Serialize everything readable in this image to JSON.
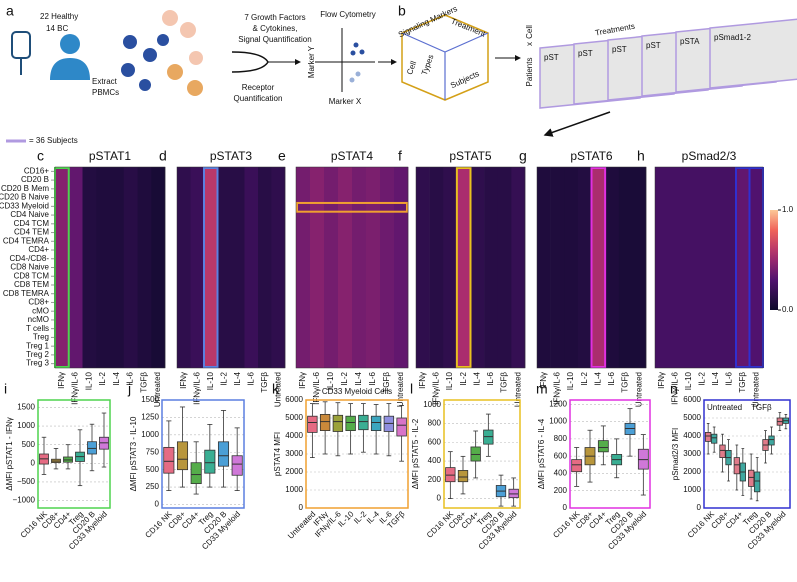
{
  "schematic": {
    "panel_a": "a",
    "cohort": [
      "22 Healthy",
      "14 BC"
    ],
    "extract": [
      "Extract",
      "PBMCs"
    ],
    "factors": [
      "7 Growth Factors",
      "& Cytokines,",
      "Signal Quantification"
    ],
    "receptor": [
      "Receptor",
      "Quantification"
    ],
    "flow": "Flow Cytometry",
    "marker_y": "Marker Y",
    "marker_x": "Marker X",
    "panel_b": "b",
    "cube": [
      "Signaling Markers",
      "Treatment",
      "Cell",
      "Types",
      "Subjects"
    ],
    "tensor": {
      "patients": "Patients",
      "x": "x",
      "cell": "Cell",
      "treatments": "Treatments",
      "slices": [
        "pST",
        "pST",
        "pST",
        "pST",
        "pSTA",
        "pSmad1-2"
      ]
    },
    "legend": "= 36 Subjects"
  },
  "chart_data": [
    {
      "type": "heatmap",
      "panel": "c",
      "title": "pSTAT1",
      "columns": [
        "IFNγ",
        "IFNγ/IL-6",
        "IL-10",
        "IL-2",
        "IL-4",
        "IL-6",
        "TGFβ",
        "Untreated"
      ],
      "values": [
        0.45,
        0.35,
        0.1,
        0.08,
        0.08,
        0.12,
        0.08,
        0.05
      ],
      "highlight_columns": [
        0
      ],
      "highlight_color": "#4fd34f",
      "rows": [
        "CD16+",
        "CD20 B",
        "CD20 B Mem",
        "CD20 B Naive",
        "CD33 Myeloid",
        "CD4 Naive",
        "CD4 TCM",
        "CD4 TEM",
        "CD4 TEMRA",
        "CD4+",
        "CD4-/CD8-",
        "CD8 Naive",
        "CD8 TCM",
        "CD8 TEM",
        "CD8 TEMRA",
        "CD8+",
        "cMO",
        "ncMO",
        "T cells",
        "Treg",
        "Treg 1",
        "Treg 2",
        "Treg 3"
      ],
      "zlim": [
        0,
        1
      ],
      "zticks": [
        {
          "value": 0,
          "label": "0.0"
        },
        {
          "value": 1,
          "label": "1.0"
        }
      ]
    },
    {
      "type": "heatmap",
      "panel": "d",
      "title": "pSTAT3",
      "columns": [
        "IFNγ",
        "IFNγ/IL-6",
        "IL-10",
        "IL-2",
        "IL-4",
        "IL-6",
        "TGFβ",
        "Untreated"
      ],
      "values": [
        0.15,
        0.2,
        0.6,
        0.12,
        0.12,
        0.2,
        0.12,
        0.15
      ],
      "highlight_columns": [
        2
      ],
      "highlight_color": "#5b7fe0"
    },
    {
      "type": "heatmap",
      "panel": "e",
      "title": "pSTAT4",
      "columns": [
        "IFNγ",
        "IFNγ/IL-6",
        "IL-10",
        "IL-2",
        "IL-4",
        "IL-6",
        "TGFβ",
        "Untreated"
      ],
      "values": [
        0.4,
        0.45,
        0.4,
        0.45,
        0.4,
        0.42,
        0.38,
        0.35
      ],
      "highlight_row": 4,
      "highlight_color": "#f0a030"
    },
    {
      "type": "heatmap",
      "panel": "f",
      "title": "pSTAT5",
      "columns": [
        "IFNγ",
        "IFNγ/IL-6",
        "IL-10",
        "IL-2",
        "IL-4",
        "IL-6",
        "TGFβ",
        "Untreated"
      ],
      "values": [
        0.15,
        0.12,
        0.15,
        0.55,
        0.15,
        0.12,
        0.12,
        0.18
      ],
      "highlight_columns": [
        3
      ],
      "highlight_color": "#e8c020"
    },
    {
      "type": "heatmap",
      "panel": "g",
      "title": "pSTAT6",
      "columns": [
        "IFNγ",
        "IFNγ/IL-6",
        "IL-10",
        "IL-2",
        "IL-4",
        "IL-6",
        "TGFβ",
        "Untreated"
      ],
      "values": [
        0.08,
        0.08,
        0.08,
        0.1,
        0.55,
        0.08,
        0.06,
        0.06
      ],
      "highlight_columns": [
        4
      ],
      "highlight_color": "#e030e0"
    },
    {
      "type": "heatmap",
      "panel": "h",
      "title": "pSmad2/3",
      "columns": [
        "IFNγ",
        "IFNγ/IL-6",
        "IL-10",
        "IL-2",
        "IL-4",
        "IL-6",
        "TGFβ",
        "Untreated"
      ],
      "values": [
        0.25,
        0.25,
        0.25,
        0.25,
        0.25,
        0.25,
        0.35,
        0.3
      ],
      "highlight_columns": [
        6,
        7
      ],
      "highlight_color": "#3030d0"
    },
    {
      "type": "box",
      "panel": "i",
      "ylabel": "ΔMFI pSTAT1 - IFNγ",
      "categories": [
        "CD16 NK",
        "CD8+",
        "CD4+",
        "Treg",
        "CD20 B",
        "CD33 Myeloid"
      ],
      "colors": [
        "#e56b83",
        "#b8963c",
        "#55ad4a",
        "#3aae93",
        "#4b9fd6",
        "#cf78d8"
      ],
      "frame_color": "#4fd34f",
      "grid": true,
      "ylim": [
        -1200,
        1700
      ],
      "yticks": [
        {
          "value": -1000,
          "label": "−1000"
        },
        {
          "value": -500,
          "label": "−500"
        },
        0,
        500,
        1000,
        1500
      ],
      "boxes": [
        {
          "min": -300,
          "q1": -20,
          "median": 120,
          "q3": 250,
          "max": 700
        },
        {
          "min": -150,
          "q1": 20,
          "median": 60,
          "q3": 110,
          "max": 400
        },
        {
          "min": -150,
          "q1": 30,
          "median": 90,
          "q3": 170,
          "max": 500
        },
        {
          "min": -600,
          "q1": 50,
          "median": 180,
          "q3": 300,
          "max": 900
        },
        {
          "min": -200,
          "q1": 250,
          "median": 400,
          "q3": 580,
          "max": 1050
        },
        {
          "min": -100,
          "q1": 380,
          "median": 550,
          "q3": 700,
          "max": 1350
        }
      ]
    },
    {
      "type": "box",
      "panel": "j",
      "ylabel": "ΔMFI pSTAT3 - IL-10",
      "categories": [
        "CD16 NK",
        "CD8+",
        "CD4+",
        "Treg",
        "CD20 B",
        "CD33 Myeloid"
      ],
      "colors": [
        "#e56b83",
        "#b8963c",
        "#55ad4a",
        "#3aae93",
        "#4b9fd6",
        "#cf78d8"
      ],
      "frame_color": "#5b7fe0",
      "grid": true,
      "ylim": [
        -50,
        1500
      ],
      "yticks": [
        0,
        250,
        500,
        750,
        1000,
        1250,
        1500
      ],
      "boxes": [
        {
          "min": 200,
          "q1": 450,
          "median": 620,
          "q3": 820,
          "max": 1200
        },
        {
          "min": 250,
          "q1": 500,
          "median": 650,
          "q3": 900,
          "max": 1400
        },
        {
          "min": 150,
          "q1": 300,
          "median": 430,
          "q3": 600,
          "max": 900
        },
        {
          "min": 250,
          "q1": 450,
          "median": 600,
          "q3": 780,
          "max": 1150
        },
        {
          "min": 250,
          "q1": 550,
          "median": 700,
          "q3": 900,
          "max": 1350
        },
        {
          "min": 200,
          "q1": 420,
          "median": 580,
          "q3": 700,
          "max": 1100
        }
      ]
    },
    {
      "type": "box",
      "panel": "k",
      "title": "CD33 Myeloid Cells",
      "ylabel": "pSTAT4 MFI",
      "categories": [
        "Untreated",
        "IFNγ",
        "IFNγ/IL-6",
        "IL-10",
        "IL-2",
        "IL-4",
        "IL-6",
        "TGFβ"
      ],
      "colors": [
        "#e56b83",
        "#c9893a",
        "#9ba23a",
        "#55ad4a",
        "#3aae93",
        "#3ca6bf",
        "#8f8fe0",
        "#d873c8"
      ],
      "frame_color": "#f0a030",
      "grid": true,
      "ylim": [
        0,
        6000
      ],
      "yticks": [
        0,
        1000,
        2000,
        3000,
        4000,
        5000,
        6000
      ],
      "boxes": [
        {
          "min": 2800,
          "q1": 4200,
          "median": 4750,
          "q3": 5100,
          "max": 5800
        },
        {
          "min": 3000,
          "q1": 4300,
          "median": 4800,
          "q3": 5200,
          "max": 5900
        },
        {
          "min": 2900,
          "q1": 4250,
          "median": 4800,
          "q3": 5150,
          "max": 5850
        },
        {
          "min": 3000,
          "q1": 4300,
          "median": 4750,
          "q3": 5100,
          "max": 5800
        },
        {
          "min": 3100,
          "q1": 4350,
          "median": 4800,
          "q3": 5150,
          "max": 5800
        },
        {
          "min": 3000,
          "q1": 4300,
          "median": 4750,
          "q3": 5100,
          "max": 5750
        },
        {
          "min": 2900,
          "q1": 4250,
          "median": 4700,
          "q3": 5100,
          "max": 5800
        },
        {
          "min": 2600,
          "q1": 4000,
          "median": 4600,
          "q3": 5000,
          "max": 5700
        }
      ]
    },
    {
      "type": "box",
      "panel": "l",
      "ylabel": "ΔMFI pSTAT5 - IL-2",
      "categories": [
        "CD16 NK",
        "CD8+",
        "CD4+",
        "Treg",
        "CD20 B",
        "CD33 Myeloid"
      ],
      "colors": [
        "#e56b83",
        "#b8963c",
        "#55ad4a",
        "#3aae93",
        "#4b9fd6",
        "#cf78d8"
      ],
      "frame_color": "#e8c020",
      "grid": true,
      "ylim": [
        -100,
        1050
      ],
      "yticks": [
        0,
        200,
        400,
        600,
        800,
        1000
      ],
      "boxes": [
        {
          "min": 0,
          "q1": 180,
          "median": 250,
          "q3": 330,
          "max": 500
        },
        {
          "min": 50,
          "q1": 180,
          "median": 230,
          "q3": 300,
          "max": 450
        },
        {
          "min": 220,
          "q1": 400,
          "median": 470,
          "q3": 550,
          "max": 720
        },
        {
          "min": 450,
          "q1": 580,
          "median": 660,
          "q3": 730,
          "max": 900
        },
        {
          "min": -80,
          "q1": 20,
          "median": 80,
          "q3": 140,
          "max": 250
        },
        {
          "min": -80,
          "q1": 10,
          "median": 50,
          "q3": 100,
          "max": 220
        }
      ]
    },
    {
      "type": "box",
      "panel": "m",
      "ylabel": "ΔMFI pSTAT6 - IL-4",
      "categories": [
        "CD16 NK",
        "CD8+",
        "CD4+",
        "Treg",
        "CD20 B",
        "CD33 Myeloid"
      ],
      "colors": [
        "#e56b83",
        "#b8963c",
        "#55ad4a",
        "#3aae93",
        "#4b9fd6",
        "#cf78d8"
      ],
      "frame_color": "#e030e0",
      "grid": true,
      "ylim": [
        0,
        1250
      ],
      "yticks": [
        0,
        200,
        400,
        600,
        800,
        1000,
        1200
      ],
      "boxes": [
        {
          "min": 250,
          "q1": 420,
          "median": 500,
          "q3": 560,
          "max": 700
        },
        {
          "min": 300,
          "q1": 500,
          "median": 600,
          "q3": 700,
          "max": 900
        },
        {
          "min": 500,
          "q1": 650,
          "median": 700,
          "q3": 780,
          "max": 950
        },
        {
          "min": 350,
          "q1": 500,
          "median": 560,
          "q3": 620,
          "max": 800
        },
        {
          "min": 600,
          "q1": 850,
          "median": 920,
          "q3": 980,
          "max": 1150
        },
        {
          "min": 150,
          "q1": 450,
          "median": 560,
          "q3": 680,
          "max": 850
        }
      ]
    },
    {
      "type": "box",
      "panel": "n",
      "ylabel": "pSmad2/3 MFI",
      "categories": [
        "CD16 NK",
        "CD8+",
        "CD4+",
        "Treg",
        "CD20 B",
        "CD33 Myeloid"
      ],
      "frame_color": "#3030d0",
      "grid": true,
      "ylim": [
        0,
        6000
      ],
      "yticks": [
        0,
        1000,
        2000,
        3000,
        4000,
        5000,
        6000
      ],
      "series": [
        {
          "name": "Untreated",
          "color": "#e07b8a",
          "boxes": [
            {
              "min": 3000,
              "q1": 3700,
              "median": 4000,
              "q3": 4200,
              "max": 4700
            },
            {
              "min": 2000,
              "q1": 2800,
              "median": 3200,
              "q3": 3500,
              "max": 4100
            },
            {
              "min": 1000,
              "q1": 1900,
              "median": 2400,
              "q3": 2800,
              "max": 3500
            },
            {
              "min": 500,
              "q1": 1200,
              "median": 1700,
              "q3": 2100,
              "max": 3000
            },
            {
              "min": 2500,
              "q1": 3200,
              "median": 3500,
              "q3": 3800,
              "max": 4300
            },
            {
              "min": 4300,
              "q1": 4600,
              "median": 4800,
              "q3": 5000,
              "max": 5300
            }
          ]
        },
        {
          "name": "TGFβ",
          "color": "#3fa8a0",
          "boxes": [
            {
              "min": 3100,
              "q1": 3600,
              "median": 3900,
              "q3": 4100,
              "max": 4500
            },
            {
              "min": 1500,
              "q1": 2400,
              "median": 2800,
              "q3": 3200,
              "max": 3800
            },
            {
              "min": 700,
              "q1": 1500,
              "median": 2000,
              "q3": 2500,
              "max": 3300
            },
            {
              "min": 400,
              "q1": 900,
              "median": 1500,
              "q3": 2000,
              "max": 2800
            },
            {
              "min": 3000,
              "q1": 3500,
              "median": 3800,
              "q3": 4000,
              "max": 4500
            },
            {
              "min": 4400,
              "q1": 4700,
              "median": 4850,
              "q3": 5000,
              "max": 5200
            }
          ]
        }
      ]
    }
  ]
}
